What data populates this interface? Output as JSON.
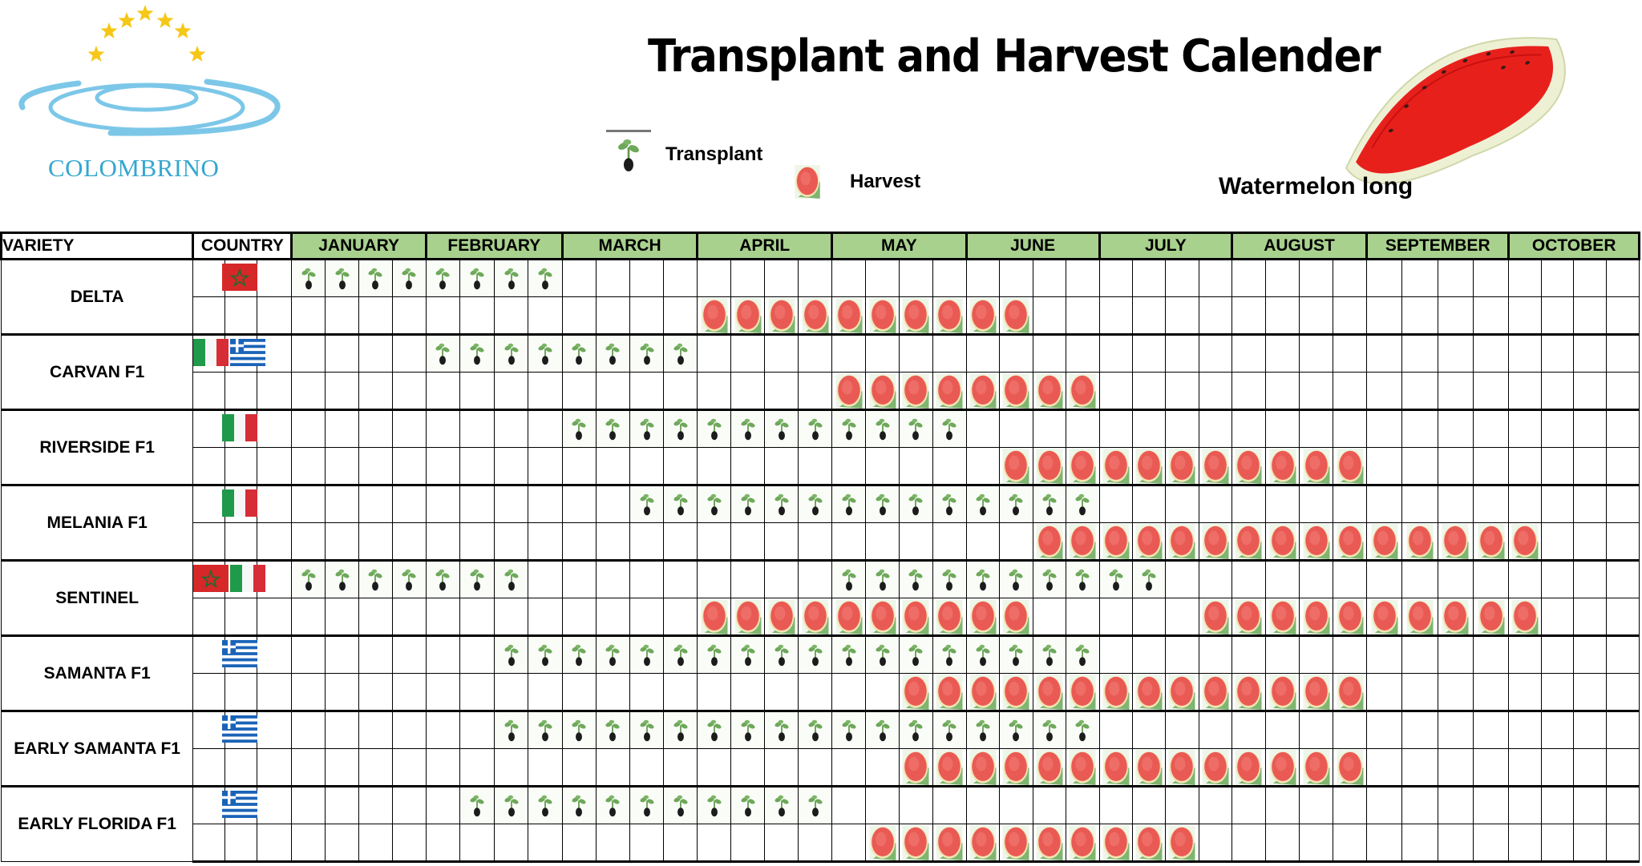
{
  "brand": {
    "name": "COLOMBRINO",
    "star_color": "#f6c717",
    "ring_color": "#7cc7e8",
    "text_color": "#35a7cf"
  },
  "title": "Transplant and Harvest Calender",
  "subtitle": "Watermelon long",
  "legend": [
    {
      "icon": "seedling-icon",
      "label": "Transplant"
    },
    {
      "icon": "watermelon-icon",
      "label": "Harvest"
    }
  ],
  "colors": {
    "month_header": "#a9d18e",
    "grid": "#000000",
    "melon": "#e9524f",
    "seedling_leaf": "#5f9a4a"
  },
  "headers": {
    "variety": "VARIETY",
    "country": "COUNTRY"
  },
  "months": [
    "JANUARY",
    "FEBRUARY",
    "MARCH",
    "APRIL",
    "MAY",
    "JUNE",
    "JULY",
    "AUGUST",
    "SEPTEMBER",
    "OCTOBER"
  ],
  "weeks_per_month": 4,
  "varieties": [
    {
      "name": "DELTA",
      "countries": [
        "Morocco"
      ],
      "transplant": [
        [
          0,
          7
        ]
      ],
      "harvest": [
        [
          12,
          21
        ]
      ]
    },
    {
      "name": "CARVAN F1",
      "countries": [
        "Italy",
        "Greece"
      ],
      "transplant": [
        [
          4,
          11
        ]
      ],
      "harvest": [
        [
          16,
          23
        ]
      ]
    },
    {
      "name": "RIVERSIDE F1",
      "countries": [
        "Italy"
      ],
      "transplant": [
        [
          8,
          19
        ]
      ],
      "harvest": [
        [
          21,
          31
        ]
      ]
    },
    {
      "name": "MELANIA F1",
      "countries": [
        "Italy"
      ],
      "transplant": [
        [
          10,
          23
        ]
      ],
      "harvest": [
        [
          22,
          36
        ]
      ]
    },
    {
      "name": "SENTINEL",
      "countries": [
        "Morocco",
        "Italy"
      ],
      "transplant": [
        [
          0,
          6
        ],
        [
          16,
          25
        ]
      ],
      "harvest": [
        [
          12,
          21
        ],
        [
          27,
          36
        ]
      ]
    },
    {
      "name": "SAMANTA F1",
      "countries": [
        "Greece"
      ],
      "transplant": [
        [
          6,
          23
        ]
      ],
      "harvest": [
        [
          18,
          31
        ]
      ]
    },
    {
      "name": "EARLY SAMANTA F1",
      "countries": [
        "Greece"
      ],
      "transplant": [
        [
          6,
          23
        ]
      ],
      "harvest": [
        [
          18,
          31
        ]
      ]
    },
    {
      "name": "EARLY FLORIDA F1",
      "countries": [
        "Greece"
      ],
      "transplant": [
        [
          5,
          15
        ]
      ],
      "harvest": [
        [
          17,
          26
        ]
      ]
    }
  ],
  "chart_data": {
    "type": "table",
    "title": "Transplant and Harvest Calender",
    "subtitle": "Watermelon long",
    "legend": [
      "Transplant",
      "Harvest"
    ],
    "columns": [
      "VARIETY",
      "COUNTRY",
      "JANUARY",
      "FEBRUARY",
      "MARCH",
      "APRIL",
      "MAY",
      "JUNE",
      "JULY",
      "AUGUST",
      "SEPTEMBER",
      "OCTOBER"
    ],
    "time_unit": "week (4 per month, index 0 = January week 1)",
    "rows": [
      {
        "variety": "DELTA",
        "country": [
          "Morocco"
        ],
        "transplant": "Jan wk1 – Feb wk4",
        "harvest": "Apr wk1 – Jun wk2"
      },
      {
        "variety": "CARVAN F1",
        "country": [
          "Italy",
          "Greece"
        ],
        "transplant": "Feb wk1 – Mar wk4",
        "harvest": "May wk1 – Jun wk4"
      },
      {
        "variety": "RIVERSIDE F1",
        "country": [
          "Italy"
        ],
        "transplant": "Mar wk1 – May wk4",
        "harvest": "Jun wk2 – Aug wk4"
      },
      {
        "variety": "MELANIA F1",
        "country": [
          "Italy"
        ],
        "transplant": "Mar wk3 – Jun wk4",
        "harvest": "Jun wk3 – Oct wk1"
      },
      {
        "variety": "SENTINEL",
        "country": [
          "Morocco",
          "Italy"
        ],
        "transplant": "Jan wk1 – Feb wk3; May wk1 – Jul wk2",
        "harvest": "Apr wk1 – Jun wk2; Jul wk4 – Oct wk1"
      },
      {
        "variety": "SAMANTA F1",
        "country": [
          "Greece"
        ],
        "transplant": "Feb wk3 – Jun wk4",
        "harvest": "May wk3 – Aug wk4"
      },
      {
        "variety": "EARLY SAMANTA F1",
        "country": [
          "Greece"
        ],
        "transplant": "Feb wk3 – Jun wk4",
        "harvest": "May wk3 – Aug wk4"
      },
      {
        "variety": "EARLY FLORIDA F1",
        "country": [
          "Greece"
        ],
        "transplant": "Feb wk2 – Apr wk4",
        "harvest": "May wk2 – Jul wk3"
      }
    ]
  }
}
